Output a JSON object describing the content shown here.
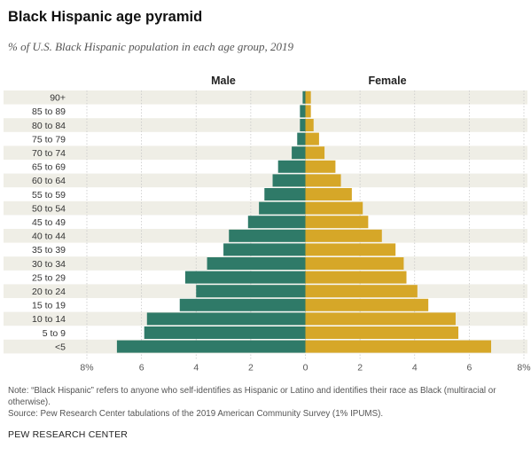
{
  "title": "Black Hispanic age pyramid",
  "subtitle": "% of U.S. Black Hispanic population in each age group, 2019",
  "chart_data": {
    "type": "bar",
    "orientation": "horizontal-diverging",
    "categories": [
      "90+",
      "85 to 89",
      "80 to 84",
      "75 to 79",
      "70 to 74",
      "65 to 69",
      "60 to 64",
      "55 to 59",
      "50 to 54",
      "45 to 49",
      "40 to 44",
      "35 to 39",
      "30 to 34",
      "25 to 29",
      "20 to 24",
      "15 to 19",
      "10 to 14",
      "5 to 9",
      "<5"
    ],
    "series": [
      {
        "name": "Male",
        "color": "#2f7a68",
        "values": [
          0.1,
          0.2,
          0.2,
          0.3,
          0.5,
          1.0,
          1.2,
          1.5,
          1.7,
          2.1,
          2.8,
          3.0,
          3.6,
          4.4,
          4.0,
          4.6,
          5.8,
          5.9,
          6.9
        ]
      },
      {
        "name": "Female",
        "color": "#d6a728",
        "values": [
          0.2,
          0.2,
          0.3,
          0.5,
          0.7,
          1.1,
          1.3,
          1.7,
          2.1,
          2.3,
          2.8,
          3.3,
          3.6,
          3.7,
          4.1,
          4.5,
          5.5,
          5.6,
          6.8
        ]
      }
    ],
    "xlim": [
      -8,
      8
    ],
    "xticks": [
      -8,
      -6,
      -4,
      -2,
      0,
      2,
      4,
      6,
      8
    ],
    "xtick_labels": [
      "8%",
      "6",
      "4",
      "2",
      "0",
      "2",
      "4",
      "6",
      "8%"
    ],
    "row_band_color": "#efeee6"
  },
  "note": "Note: “Black Hispanic” refers to anyone who self-identifies as Hispanic or Latino and identifies their race as Black (multiracial or otherwise).",
  "source": "Source: Pew Research Center tabulations of the 2019 American Community Survey (1% IPUMS).",
  "brand": "PEW RESEARCH CENTER"
}
